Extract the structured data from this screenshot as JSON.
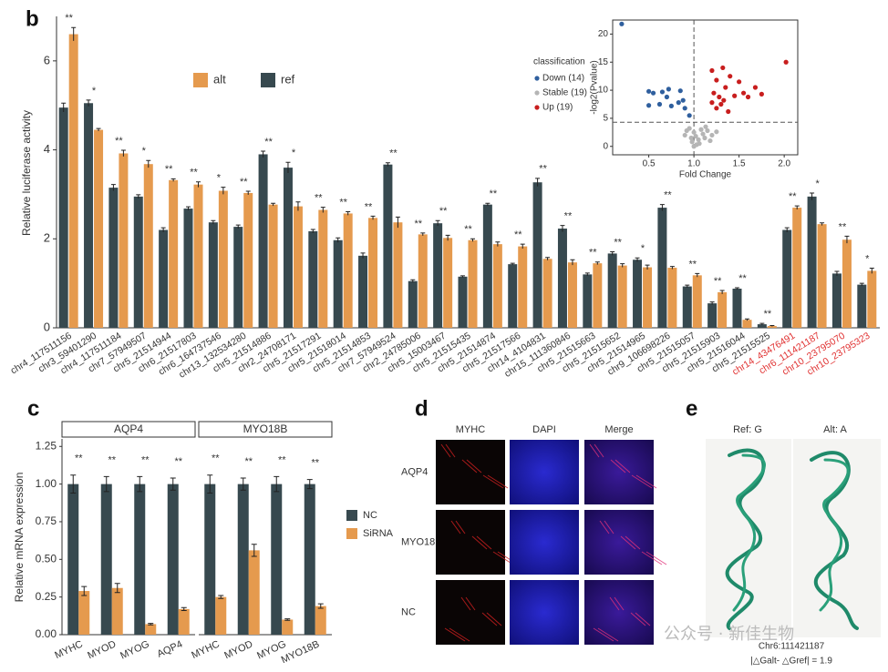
{
  "panel_labels": [
    "b",
    "c",
    "d",
    "e"
  ],
  "chart_data": [
    {
      "type": "bar",
      "ylabel": "Relative luciferase activity",
      "categories": [
        "chr4_117511156",
        "chr3_59401290",
        "chr4_117511184",
        "chr7_57949507",
        "chr5_21514944",
        "chr6_21517803",
        "chr6_164737546",
        "chr13_132534280",
        "chr5_21514886",
        "chr2_24708171",
        "chr5_21517291",
        "chr5_21518014",
        "chr5_21514853",
        "chr7_57949524",
        "chr2_24785006",
        "chr5_15003467",
        "chr5_21515435",
        "chr5_21514874",
        "chr5_21517566",
        "chr14_4104831",
        "chr15_111360846",
        "chr5_21515663",
        "chr5_21515652",
        "chr5_21514965",
        "chr9_106698226",
        "chr5_21515057",
        "chr5_21515903",
        "chr5_21516044",
        "chr5_21515525",
        "chr14_43476491",
        "chr6_111421187",
        "chr10_23795070",
        "chr10_23795323"
      ],
      "category_colors": [
        "#333",
        "#333",
        "#333",
        "#333",
        "#333",
        "#333",
        "#333",
        "#333",
        "#333",
        "#333",
        "#333",
        "#333",
        "#333",
        "#333",
        "#333",
        "#333",
        "#333",
        "#333",
        "#333",
        "#333",
        "#333",
        "#333",
        "#333",
        "#333",
        "#333",
        "#333",
        "#333",
        "#333",
        "#333",
        "#e03030",
        "#e03030",
        "#e03030",
        "#e03030"
      ],
      "series": [
        {
          "name": "alt",
          "color": "#e59a4e",
          "values": [
            6.6,
            4.45,
            3.92,
            3.68,
            3.32,
            3.22,
            3.08,
            3.03,
            2.77,
            2.73,
            2.65,
            2.57,
            2.47,
            2.37,
            2.1,
            2.02,
            1.97,
            1.88,
            1.83,
            1.55,
            1.47,
            1.45,
            1.4,
            1.36,
            1.35,
            1.18,
            0.8,
            0.18,
            0.04,
            2.7,
            2.33,
            1.98,
            1.28
          ],
          "errors": [
            0.15,
            0.03,
            0.07,
            0.08,
            0.03,
            0.06,
            0.08,
            0.04,
            0.03,
            0.1,
            0.06,
            0.04,
            0.04,
            0.12,
            0.03,
            0.06,
            0.03,
            0.05,
            0.05,
            0.03,
            0.06,
            0.03,
            0.04,
            0.05,
            0.03,
            0.04,
            0.04,
            0.02,
            0.01,
            0.04,
            0.03,
            0.08,
            0.06
          ]
        },
        {
          "name": "ref",
          "color": "#37494f",
          "values": [
            4.95,
            5.05,
            3.15,
            2.95,
            2.2,
            2.68,
            2.37,
            2.27,
            3.9,
            3.6,
            2.17,
            1.97,
            1.62,
            3.67,
            1.05,
            2.35,
            1.15,
            2.77,
            1.43,
            3.27,
            2.23,
            1.2,
            1.67,
            1.53,
            2.7,
            0.93,
            0.55,
            0.88,
            0.08,
            2.2,
            2.95,
            1.22,
            0.97
          ],
          "errors": [
            0.1,
            0.07,
            0.07,
            0.04,
            0.05,
            0.04,
            0.04,
            0.04,
            0.07,
            0.12,
            0.04,
            0.05,
            0.06,
            0.04,
            0.03,
            0.06,
            0.02,
            0.03,
            0.02,
            0.09,
            0.07,
            0.03,
            0.04,
            0.04,
            0.07,
            0.03,
            0.03,
            0.02,
            0.02,
            0.05,
            0.08,
            0.05,
            0.03
          ]
        }
      ],
      "annotations": [
        "**",
        "*",
        "**",
        "*",
        "**",
        "**",
        "*",
        "**",
        "**",
        "*",
        "**",
        "**",
        "**",
        "**",
        "**",
        "**",
        "**",
        "**",
        "**",
        "**",
        "**",
        "**",
        "**",
        "*",
        "**",
        "**",
        "**",
        "**",
        "**",
        "**",
        "*",
        "**",
        "*"
      ],
      "ylim": [
        0,
        7
      ],
      "yticks": [
        0,
        2,
        4,
        6
      ]
    },
    {
      "type": "scatter",
      "xlabel": "Fold Change",
      "ylabel": "-log2(Pvalue)",
      "legend_title": "classification",
      "xlim": [
        0.1,
        2.15
      ],
      "ylim": [
        -1.5,
        22.5
      ],
      "xticks": [
        0.5,
        {
          "value": 1,
          "label": "1.0"
        },
        1.5,
        {
          "value": 2,
          "label": "2.0"
        }
      ],
      "yticks": [
        0,
        5,
        10,
        15,
        20
      ],
      "vline": 1,
      "hline": 4.3,
      "series": [
        {
          "name": "Down (14)",
          "color": "#2f5f9e",
          "x": [
            0.2,
            0.5,
            0.55,
            0.65,
            0.72,
            0.85,
            0.5,
            0.62,
            0.75,
            0.83,
            0.9,
            0.95,
            0.88,
            0.7
          ],
          "y": [
            21.8,
            9.8,
            9.5,
            9.7,
            10.2,
            9.9,
            7.3,
            7.5,
            7.2,
            7.8,
            6.8,
            5.5,
            8.2,
            8.8
          ]
        },
        {
          "name": "Stable (19)",
          "color": "#b5b5b5",
          "x": [
            0.92,
            0.95,
            1.0,
            1.02,
            1.05,
            1.08,
            1.1,
            1.12,
            1.15,
            1.2,
            0.98,
            1.03,
            1.0,
            1.06,
            0.97,
            1.13,
            1.18,
            1.25,
            0.9
          ],
          "y": [
            2.8,
            3.2,
            2.5,
            1.8,
            1.2,
            3.0,
            2.2,
            1.5,
            2.8,
            2.0,
            0.8,
            0.3,
            0.0,
            0.5,
            1.5,
            3.5,
            1.0,
            2.6,
            2.0
          ]
        },
        {
          "name": "Up (19)",
          "color": "#c81e1e",
          "x": [
            1.2,
            1.25,
            1.32,
            1.22,
            1.28,
            1.35,
            1.4,
            1.5,
            1.55,
            1.6,
            1.68,
            1.75,
            2.02,
            1.3,
            1.25,
            1.38,
            1.45,
            1.2,
            1.33
          ],
          "y": [
            13.5,
            11.8,
            14.0,
            9.5,
            8.8,
            10.5,
            12.5,
            11.5,
            9.5,
            8.8,
            10.5,
            9.3,
            15.0,
            7.5,
            6.8,
            6.2,
            9.0,
            7.8,
            8.2
          ]
        }
      ]
    },
    {
      "type": "faceted_bar",
      "ylabel": "Relative mRNA expression",
      "ylim": [
        0,
        1.3
      ],
      "yticks": [
        {
          "value": 0,
          "label": "0.00"
        },
        {
          "value": 0.25,
          "label": "0.25"
        },
        {
          "value": 0.5,
          "label": "0.50"
        },
        {
          "value": 0.75,
          "label": "0.75"
        },
        {
          "value": 1,
          "label": "1.00"
        },
        {
          "value": 1.25,
          "label": "1.25"
        }
      ],
      "legend": [
        {
          "name": "NC",
          "color": "#37494f"
        },
        {
          "name": "SiRNA",
          "color": "#e59a4e"
        }
      ],
      "facets": [
        {
          "title": "AQP4",
          "categories": [
            "MYHC",
            "MYOD",
            "MYOG",
            "AQP4"
          ],
          "series": [
            {
              "values": [
                1.0,
                1.0,
                1.0,
                1.0
              ],
              "errors": [
                0.06,
                0.05,
                0.05,
                0.04
              ]
            },
            {
              "values": [
                0.29,
                0.31,
                0.07,
                0.17
              ],
              "errors": [
                0.03,
                0.03,
                0.005,
                0.01
              ]
            }
          ],
          "annotations": [
            "**",
            "**",
            "**",
            "**"
          ]
        },
        {
          "title": "MYO18B",
          "categories": [
            "MYHC",
            "MYOD",
            "MYOG",
            "MYO18B"
          ],
          "series": [
            {
              "values": [
                1.0,
                1.0,
                1.0,
                1.0
              ],
              "errors": [
                0.06,
                0.04,
                0.05,
                0.03
              ]
            },
            {
              "values": [
                0.25,
                0.56,
                0.1,
                0.19
              ],
              "errors": [
                0.01,
                0.04,
                0.005,
                0.015
              ]
            }
          ],
          "annotations": [
            "**",
            "**",
            "**",
            "**"
          ]
        }
      ]
    }
  ],
  "panel_d": {
    "columns": [
      "MYHC",
      "DAPI",
      "Merge"
    ],
    "rows": [
      "AQP4",
      "MYO18B",
      "NC"
    ]
  },
  "panel_e": {
    "columns": [
      "Ref: G",
      "Alt: A"
    ],
    "position": "Chr6:111421187",
    "energy": "|△Galt- △Gref| = 1.9"
  },
  "watermark": "公众号 · 新佳生物"
}
